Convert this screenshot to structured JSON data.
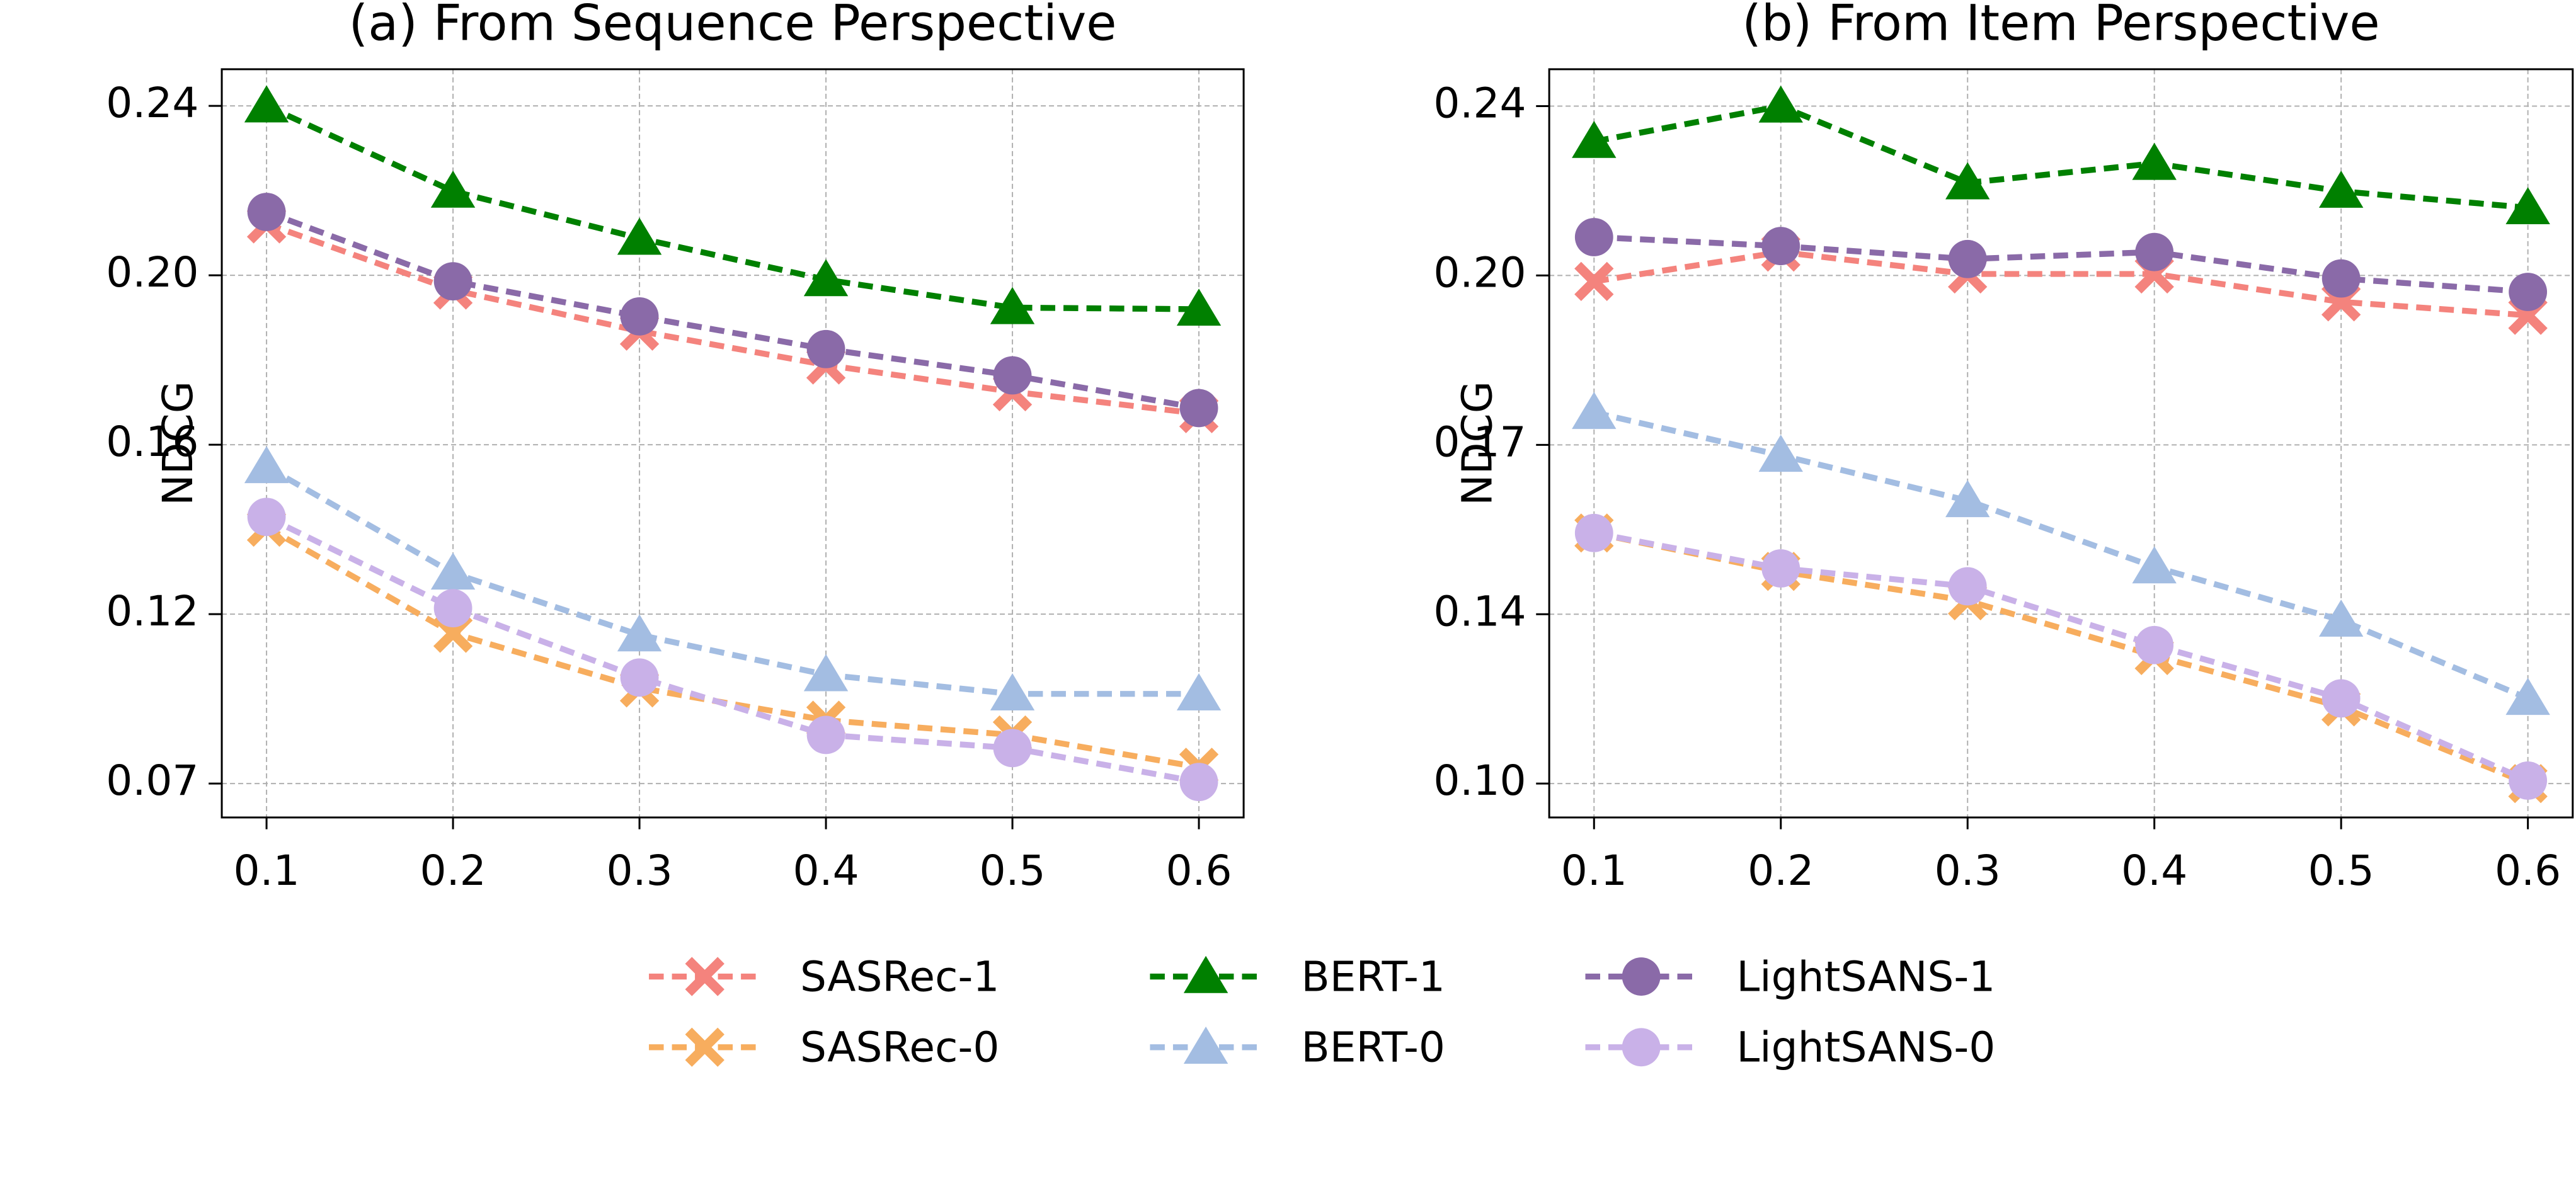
{
  "chart_data": [
    {
      "type": "line",
      "title": "(a) From Sequence Perspective",
      "ylabel": "NDCG",
      "grid": true,
      "x": [
        0.1,
        0.2,
        0.3,
        0.4,
        0.5,
        0.6
      ],
      "xlim": [
        0.076,
        0.624
      ],
      "xticks": [
        0.1,
        0.2,
        0.3,
        0.4,
        0.5,
        0.6
      ],
      "ylim": [
        0.0655,
        0.2532
      ],
      "yticks": [
        {
          "value": 0.074,
          "label": "0.07"
        },
        {
          "value": 0.1165,
          "label": "0.12"
        },
        {
          "value": 0.159,
          "label": "0.16"
        },
        {
          "value": 0.2015,
          "label": "0.20"
        },
        {
          "value": 0.244,
          "label": "0.24"
        }
      ],
      "series": [
        {
          "name": "SASRec-1",
          "color": "#f4837d",
          "marker": "x",
          "values": [
            0.2144,
            0.1978,
            0.1875,
            0.179,
            0.1723,
            0.1668
          ]
        },
        {
          "name": "SASRec-0",
          "color": "#f7ad5e",
          "marker": "x",
          "values": [
            0.1383,
            0.1117,
            0.098,
            0.0899,
            0.0862,
            0.0781
          ]
        },
        {
          "name": "BERT-1",
          "color": "#008000",
          "marker": "triangle",
          "values": [
            0.244,
            0.2226,
            0.2108,
            0.2004,
            0.1934,
            0.193
          ]
        },
        {
          "name": "BERT-0",
          "color": "#a3bde2",
          "marker": "triangle",
          "values": [
            0.1535,
            0.1268,
            0.1113,
            0.1013,
            0.0965,
            0.0965
          ]
        },
        {
          "name": "LightSANS-1",
          "color": "#8a6aa8",
          "marker": "circle",
          "values": [
            0.2174,
            0.2,
            0.1912,
            0.183,
            0.1764,
            0.1682
          ]
        },
        {
          "name": "LightSANS-0",
          "color": "#c9b1e8",
          "marker": "circle",
          "values": [
            0.1409,
            0.118,
            0.1006,
            0.0862,
            0.0829,
            0.0744
          ]
        }
      ]
    },
    {
      "type": "line",
      "title": "(b) From Item Perspective",
      "ylabel": "NDCG",
      "grid": true,
      "x": [
        0.1,
        0.2,
        0.3,
        0.4,
        0.5,
        0.6
      ],
      "xlim": [
        0.076,
        0.624
      ],
      "xticks": [
        0.1,
        0.2,
        0.3,
        0.4,
        0.5,
        0.6
      ],
      "ylim": [
        0.0957,
        0.2459
      ],
      "yticks": [
        {
          "value": 0.1025,
          "label": "0.10"
        },
        {
          "value": 0.1365,
          "label": "0.14"
        },
        {
          "value": 0.1705,
          "label": "0.17"
        },
        {
          "value": 0.2045,
          "label": "0.20"
        },
        {
          "value": 0.2385,
          "label": "0.24"
        }
      ],
      "series": [
        {
          "name": "SASRec-1",
          "color": "#f4837d",
          "marker": "x",
          "values": [
            0.2033,
            0.2092,
            0.2048,
            0.2048,
            0.1992,
            0.1965
          ]
        },
        {
          "name": "SASRec-0",
          "color": "#f7ad5e",
          "marker": "x",
          "values": [
            0.1528,
            0.1451,
            0.1392,
            0.1282,
            0.1179,
            0.1025
          ]
        },
        {
          "name": "BERT-1",
          "color": "#008000",
          "marker": "triangle",
          "values": [
            0.2314,
            0.2385,
            0.2231,
            0.227,
            0.2214,
            0.2181
          ]
        },
        {
          "name": "BERT-0",
          "color": "#a3bde2",
          "marker": "triangle",
          "values": [
            0.177,
            0.1684,
            0.1593,
            0.146,
            0.1353,
            0.1196
          ]
        },
        {
          "name": "LightSANS-1",
          "color": "#8a6aa8",
          "marker": "circle",
          "values": [
            0.2122,
            0.2104,
            0.2078,
            0.2092,
            0.2039,
            0.2012
          ]
        },
        {
          "name": "LightSANS-0",
          "color": "#c9b1e8",
          "marker": "circle",
          "values": [
            0.1528,
            0.1457,
            0.1421,
            0.1303,
            0.1196,
            0.1031
          ]
        }
      ]
    }
  ]
}
